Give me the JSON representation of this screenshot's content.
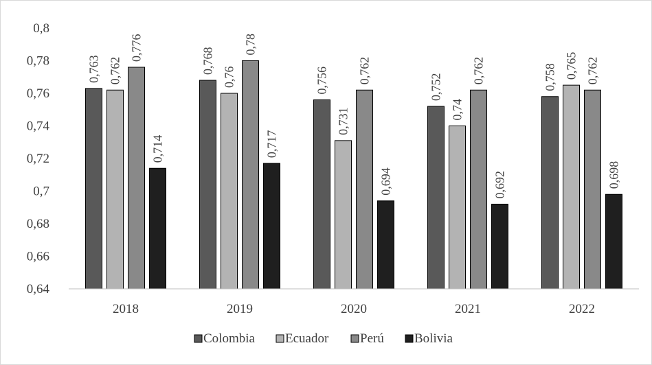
{
  "chart_data": {
    "type": "bar",
    "categories": [
      "2018",
      "2019",
      "2020",
      "2021",
      "2022"
    ],
    "series": [
      {
        "name": "Colombia",
        "color": "#595959",
        "values": [
          0.763,
          0.768,
          0.756,
          0.752,
          0.758
        ],
        "labels": [
          "0,763",
          "0,768",
          "0,756",
          "0,752",
          "0,758"
        ]
      },
      {
        "name": "Ecuador",
        "color": "#b3b3b3",
        "values": [
          0.762,
          0.76,
          0.731,
          0.74,
          0.765
        ],
        "labels": [
          "0,762",
          "0,76",
          "0,731",
          "0,74",
          "0,765"
        ]
      },
      {
        "name": "Perú",
        "color": "#898989",
        "values": [
          0.776,
          0.78,
          0.762,
          0.762,
          0.762
        ],
        "labels": [
          "0,776",
          "0,78",
          "0,762",
          "0,762",
          "0,762"
        ]
      },
      {
        "name": "Bolivia",
        "color": "#1f1f1f",
        "values": [
          0.714,
          0.717,
          0.694,
          0.692,
          0.698
        ],
        "labels": [
          "0,714",
          "0,717",
          "0,694",
          "0,692",
          "0,698"
        ]
      }
    ],
    "ylim": [
      0.64,
      0.8
    ],
    "yticks": [
      0.64,
      0.66,
      0.68,
      0.7,
      0.72,
      0.74,
      0.76,
      0.78,
      0.8
    ],
    "ytick_labels": [
      "0,64",
      "0,66",
      "0,68",
      "0,7",
      "0,72",
      "0,74",
      "0,76",
      "0,78",
      "0,8"
    ],
    "grid": false,
    "legend_position": "bottom"
  }
}
